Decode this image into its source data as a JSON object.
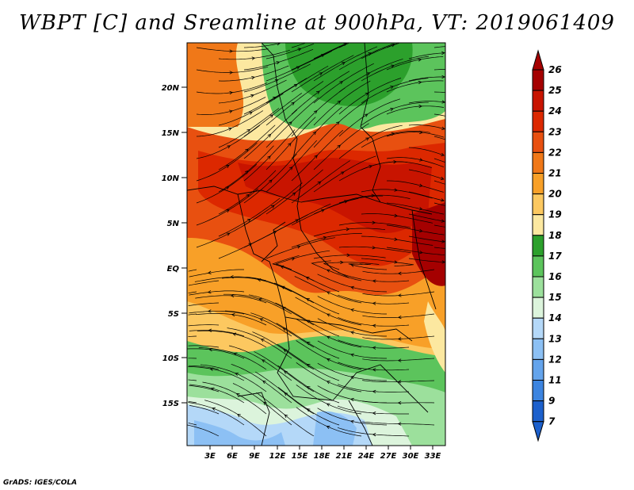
{
  "title": "WBPT [C] and Sreamline at 900hPa, VT: 2019061409",
  "credit": "GrADS: IGES/COLA",
  "map": {
    "variable": "Wet-bulb potential temperature",
    "units": "C",
    "level": "900hPa",
    "valid_time": "2019061409",
    "lat_labels": [
      "20N",
      "15N",
      "10N",
      "5N",
      "EQ",
      "5S",
      "10S",
      "15S"
    ],
    "lon_labels": [
      "3E",
      "6E",
      "9E",
      "12E",
      "15E",
      "18E",
      "21E",
      "24E",
      "27E",
      "30E",
      "33E"
    ]
  },
  "colorbar": {
    "labels": [
      "26",
      "25",
      "24",
      "23",
      "22",
      "21",
      "20",
      "19",
      "18",
      "17",
      "16",
      "15",
      "14",
      "13",
      "12",
      "11",
      "9",
      "7"
    ],
    "colors": [
      "#a50000",
      "#c81400",
      "#dc2800",
      "#e85010",
      "#f07818",
      "#f8a028",
      "#fcc860",
      "#fce8a0",
      "#2ca02c",
      "#5cc45c",
      "#9ce09c",
      "#dcf4dc",
      "#b4d8f8",
      "#8cc0f4",
      "#64a4ec",
      "#3c84e0",
      "#1c60cc"
    ]
  },
  "colors": {
    "stream": "#000000",
    "border": "#000000"
  }
}
